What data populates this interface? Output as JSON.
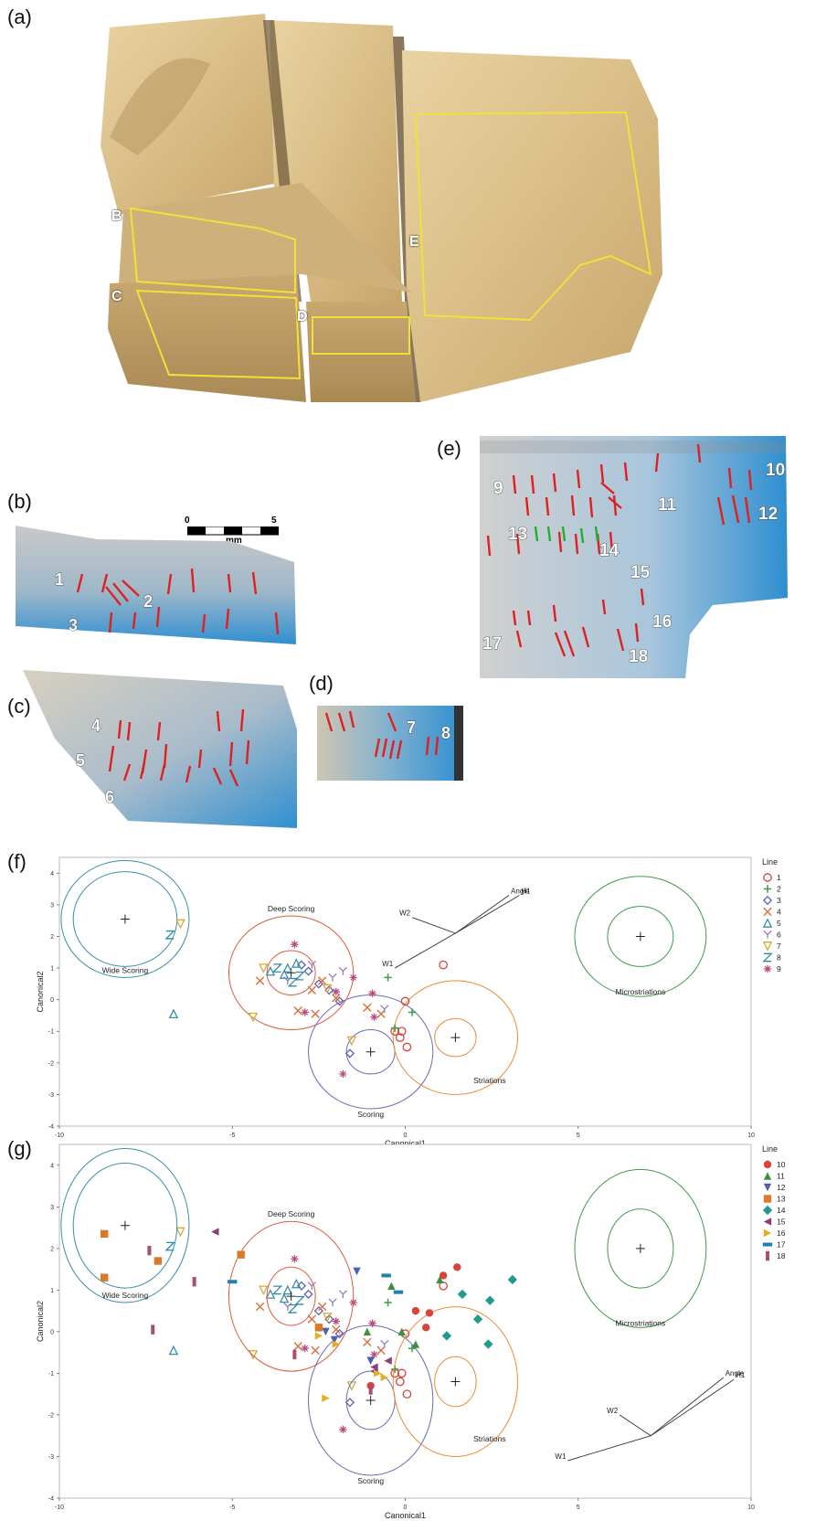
{
  "panels": {
    "a": "(a)",
    "b": "(b)",
    "c": "(c)",
    "d": "(d)",
    "e": "(e)",
    "f": "(f)",
    "g": "(g)"
  },
  "panel_a": {
    "regions": [
      "B",
      "C",
      "D",
      "E"
    ]
  },
  "scale_bar": {
    "ticks": [
      "0",
      "5"
    ],
    "unit": "mm"
  },
  "panel_b": {
    "line_numbers": [
      "1",
      "2",
      "3"
    ]
  },
  "panel_c": {
    "line_numbers": [
      "4",
      "5",
      "6"
    ]
  },
  "panel_d": {
    "line_numbers": [
      "7",
      "8"
    ]
  },
  "panel_e": {
    "line_numbers": [
      "9",
      "10",
      "11",
      "12",
      "13",
      "14",
      "15",
      "16",
      "17",
      "18"
    ]
  },
  "colors": {
    "wide": "#3a8fa6",
    "deep": "#e05a3a",
    "scoring": "#6c6ab6",
    "striations": "#ee8a35",
    "micro": "#3f9a4a",
    "l1": "#d8443a",
    "l2": "#3f9a4a",
    "l3": "#5c63b3",
    "l4": "#d8703a",
    "l5": "#3a8fa6",
    "l6": "#9a7bc0",
    "l7": "#d6a838",
    "l8": "#2e8ba8",
    "l9": "#b8497a",
    "l10": "#d8443a",
    "l11": "#3f8f3f",
    "l12": "#4f5fa8",
    "l13": "#d87a2a",
    "l14": "#1f9a8c",
    "l15": "#8a3e7a",
    "l16": "#e0b020",
    "l17": "#1f80b0",
    "l18": "#a84f6a",
    "scan_blue": "#2f8fd0",
    "red_mark": "#e02020",
    "green_mark": "#20b030",
    "yellow_outline": "#f2e03a"
  },
  "chart_data": [
    {
      "type": "scatter",
      "panel": "(f)",
      "xlabel": "Canonical1",
      "ylabel": "Canonical2",
      "xlim": [
        -10,
        10
      ],
      "ylim": [
        -4,
        4.5
      ],
      "xticks": [
        "-10",
        "-5",
        "0",
        "5",
        "10"
      ],
      "yticks": [
        "4",
        "3",
        "2",
        "1",
        "0",
        "-1",
        "-2",
        "-3",
        "-4"
      ],
      "legend_title": "Line",
      "legend_placement": "right",
      "legend": [
        {
          "label": "1",
          "marker": "circle-open"
        },
        {
          "label": "2",
          "marker": "plus"
        },
        {
          "label": "3",
          "marker": "diamond-open"
        },
        {
          "label": "4",
          "marker": "x"
        },
        {
          "label": "5",
          "marker": "triangle-open"
        },
        {
          "label": "6",
          "marker": "Y"
        },
        {
          "label": "7",
          "marker": "triangle-down-open"
        },
        {
          "label": "8",
          "marker": "Z"
        },
        {
          "label": "9",
          "marker": "asterisk"
        }
      ],
      "groups": [
        {
          "label": "Wide Scoring",
          "center": [
            -8.1,
            2.55
          ],
          "r_inner": 1.5,
          "r_outer": 1.85
        },
        {
          "label": "Deep Scoring",
          "center": [
            -3.3,
            0.85
          ],
          "r_inner": 0.7,
          "r_outer": 1.8
        },
        {
          "label": "Scoring",
          "center": [
            -1.0,
            -1.65
          ],
          "r_inner": 0.7,
          "r_outer": 1.8
        },
        {
          "label": "Striations",
          "center": [
            1.45,
            -1.2
          ],
          "r_inner": 0.6,
          "r_outer": 1.8
        },
        {
          "label": "Microstriations",
          "center": [
            6.8,
            2.0
          ],
          "r_inner": 0.95,
          "r_outer": 1.9
        }
      ],
      "biplot": {
        "origin": [
          1.45,
          2.1
        ],
        "rays": [
          {
            "label": "Angle",
            "end": [
              3.0,
              3.3
            ]
          },
          {
            "label": "H1",
            "end": [
              3.3,
              3.3
            ]
          },
          {
            "label": "W2",
            "end": [
              0.2,
              2.6
            ]
          },
          {
            "label": "W1",
            "end": [
              -0.3,
              1.0
            ]
          }
        ]
      },
      "series": [
        {
          "name": "1",
          "points": [
            [
              1.1,
              1.1
            ],
            [
              0.0,
              -0.05
            ],
            [
              -0.3,
              -1.0
            ],
            [
              -0.15,
              -1.2
            ],
            [
              -0.1,
              -1.0
            ],
            [
              0.05,
              -1.5
            ]
          ]
        },
        {
          "name": "2",
          "points": [
            [
              -0.5,
              0.7
            ],
            [
              0.2,
              -0.4
            ],
            [
              -0.3,
              -0.9
            ]
          ]
        },
        {
          "name": "3",
          "points": [
            [
              -3.0,
              1.1
            ],
            [
              -2.8,
              0.9
            ],
            [
              -2.5,
              0.5
            ],
            [
              -2.2,
              0.3
            ],
            [
              -1.9,
              -0.05
            ],
            [
              -1.6,
              -1.7
            ]
          ]
        },
        {
          "name": "4",
          "points": [
            [
              -4.2,
              0.6
            ],
            [
              -3.1,
              -0.35
            ],
            [
              -2.7,
              0.3
            ],
            [
              -2.4,
              0.6
            ],
            [
              -2.0,
              0.05
            ],
            [
              -1.1,
              -0.25
            ],
            [
              -0.7,
              -0.45
            ],
            [
              -2.6,
              -0.45
            ]
          ]
        },
        {
          "name": "5",
          "points": [
            [
              -3.9,
              0.9
            ],
            [
              -3.5,
              0.8
            ],
            [
              -6.7,
              -0.45
            ],
            [
              -3.4,
              1.0
            ],
            [
              -3.15,
              1.15
            ]
          ]
        },
        {
          "name": "6",
          "points": [
            [
              -3.4,
              0.6
            ],
            [
              -2.7,
              1.1
            ],
            [
              -2.1,
              0.7
            ],
            [
              -0.6,
              -0.3
            ],
            [
              -1.8,
              0.9
            ]
          ]
        },
        {
          "name": "7",
          "points": [
            [
              -6.5,
              2.4
            ],
            [
              -4.1,
              1.0
            ],
            [
              -2.25,
              0.35
            ],
            [
              -4.4,
              -0.55
            ],
            [
              -1.55,
              -1.3
            ]
          ]
        },
        {
          "name": "8",
          "points": [
            [
              -6.8,
              2.05
            ],
            [
              -3.7,
              1.0
            ],
            [
              -3.25,
              0.55
            ],
            [
              -3.05,
              0.75
            ]
          ]
        },
        {
          "name": "9",
          "points": [
            [
              -3.2,
              1.75
            ],
            [
              -2.0,
              0.25
            ],
            [
              -2.9,
              -0.4
            ],
            [
              -1.8,
              -2.35
            ],
            [
              -0.9,
              -0.55
            ],
            [
              -0.95,
              0.2
            ],
            [
              -1.5,
              0.7
            ]
          ]
        }
      ]
    },
    {
      "type": "scatter",
      "panel": "(g)",
      "xlabel": "Canonical1",
      "ylabel": "Canonical2",
      "xlim": [
        -10,
        10
      ],
      "ylim": [
        -4,
        4.5
      ],
      "xticks": [
        "-10",
        "-5",
        "0",
        "5",
        "10"
      ],
      "yticks": [
        "4",
        "3",
        "2",
        "1",
        "0",
        "-1",
        "-2",
        "-3",
        "-4"
      ],
      "legend_title": "Line",
      "legend_placement": "right",
      "legend": [
        {
          "label": "10",
          "marker": "circle"
        },
        {
          "label": "11",
          "marker": "triangle"
        },
        {
          "label": "12",
          "marker": "triangle-down"
        },
        {
          "label": "13",
          "marker": "square"
        },
        {
          "label": "14",
          "marker": "diamond"
        },
        {
          "label": "15",
          "marker": "triangle-left"
        },
        {
          "label": "16",
          "marker": "triangle-right"
        },
        {
          "label": "17",
          "marker": "bar-h"
        },
        {
          "label": "18",
          "marker": "bar-v"
        }
      ],
      "groups": [
        {
          "label": "Wide Scoring",
          "center": [
            -8.1,
            2.55
          ],
          "r_inner": 1.5,
          "r_outer": 1.85
        },
        {
          "label": "Deep Scoring",
          "center": [
            -3.3,
            0.85
          ],
          "r_inner": 0.7,
          "r_outer": 1.8
        },
        {
          "label": "Scoring",
          "center": [
            -1.0,
            -1.65
          ],
          "r_inner": 0.7,
          "r_outer": 1.8
        },
        {
          "label": "Striations",
          "center": [
            1.45,
            -1.2
          ],
          "r_inner": 0.6,
          "r_outer": 1.8
        },
        {
          "label": "Microstriations",
          "center": [
            6.8,
            2.0
          ],
          "r_inner": 0.95,
          "r_outer": 1.9
        }
      ],
      "biplot": {
        "origin": [
          7.1,
          -2.5
        ],
        "rays": [
          {
            "label": "Angle",
            "end": [
              9.2,
              -1.1
            ]
          },
          {
            "label": "H1",
            "end": [
              9.5,
              -1.15
            ]
          },
          {
            "label": "W2",
            "end": [
              6.2,
              -2.0
            ]
          },
          {
            "label": "W1",
            "end": [
              4.7,
              -3.1
            ]
          }
        ]
      },
      "background_points": [
        [
          -3.0,
          1.1
        ],
        [
          -2.8,
          0.9
        ],
        [
          -2.5,
          0.5
        ],
        [
          -2.2,
          0.3
        ],
        [
          -4.2,
          0.6
        ],
        [
          -3.1,
          -0.35
        ],
        [
          -2.7,
          0.3
        ],
        [
          -3.9,
          0.9
        ],
        [
          -3.5,
          0.8
        ],
        [
          -6.7,
          -0.45
        ],
        [
          -3.4,
          0.6
        ],
        [
          -2.7,
          1.1
        ],
        [
          -6.5,
          2.4
        ],
        [
          -4.1,
          1.0
        ],
        [
          -4.4,
          -0.55
        ],
        [
          -1.55,
          -1.3
        ],
        [
          -6.8,
          2.05
        ],
        [
          -3.7,
          1.0
        ],
        [
          -3.25,
          0.55
        ],
        [
          -3.2,
          1.75
        ],
        [
          -2.0,
          0.25
        ],
        [
          -1.8,
          -2.35
        ],
        [
          -0.9,
          -0.55
        ],
        [
          -1.5,
          0.7
        ],
        [
          1.1,
          1.1
        ],
        [
          0.0,
          -0.05
        ],
        [
          -0.3,
          -1.0
        ],
        [
          -1.6,
          -1.7
        ]
      ],
      "series": [
        {
          "name": "10",
          "points": [
            [
              0.3,
              0.5
            ],
            [
              0.6,
              0.1
            ],
            [
              1.1,
              1.35
            ],
            [
              1.5,
              1.55
            ],
            [
              0.7,
              0.45
            ],
            [
              -1.0,
              -1.3
            ]
          ]
        },
        {
          "name": "11",
          "points": [
            [
              -0.1,
              0.0
            ],
            [
              0.3,
              -0.3
            ],
            [
              -1.1,
              0.0
            ],
            [
              -0.4,
              1.1
            ],
            [
              1.0,
              1.25
            ]
          ]
        },
        {
          "name": "12",
          "points": [
            [
              -1.4,
              1.45
            ],
            [
              -2.05,
              -0.2
            ],
            [
              -2.3,
              0.0
            ],
            [
              -1.0,
              -0.7
            ]
          ]
        },
        {
          "name": "13",
          "points": [
            [
              -8.7,
              2.35
            ],
            [
              -8.7,
              1.3
            ],
            [
              -7.15,
              1.7
            ],
            [
              -4.75,
              1.85
            ],
            [
              -2.5,
              0.1
            ]
          ]
        },
        {
          "name": "14",
          "points": [
            [
              1.65,
              0.9
            ],
            [
              2.1,
              0.3
            ],
            [
              2.45,
              0.75
            ],
            [
              3.1,
              1.25
            ],
            [
              1.2,
              -0.1
            ],
            [
              2.4,
              -0.3
            ]
          ]
        },
        {
          "name": "15",
          "points": [
            [
              -5.5,
              2.4
            ],
            [
              -0.9,
              -0.85
            ],
            [
              -0.5,
              -0.7
            ],
            [
              -0.9,
              -0.95
            ]
          ]
        },
        {
          "name": "16",
          "points": [
            [
              -2.5,
              -0.1
            ],
            [
              -2.0,
              -0.3
            ],
            [
              -2.3,
              -1.6
            ],
            [
              -0.8,
              -1.0
            ],
            [
              -0.6,
              -1.1
            ]
          ]
        },
        {
          "name": "17",
          "points": [
            [
              -5.0,
              1.2
            ],
            [
              -0.2,
              0.95
            ],
            [
              -0.55,
              1.35
            ]
          ]
        },
        {
          "name": "18",
          "points": [
            [
              -7.4,
              1.95
            ],
            [
              -7.3,
              0.05
            ],
            [
              -6.1,
              1.2
            ],
            [
              -3.2,
              -0.55
            ],
            [
              -1.0,
              -1.4
            ]
          ]
        }
      ]
    }
  ]
}
